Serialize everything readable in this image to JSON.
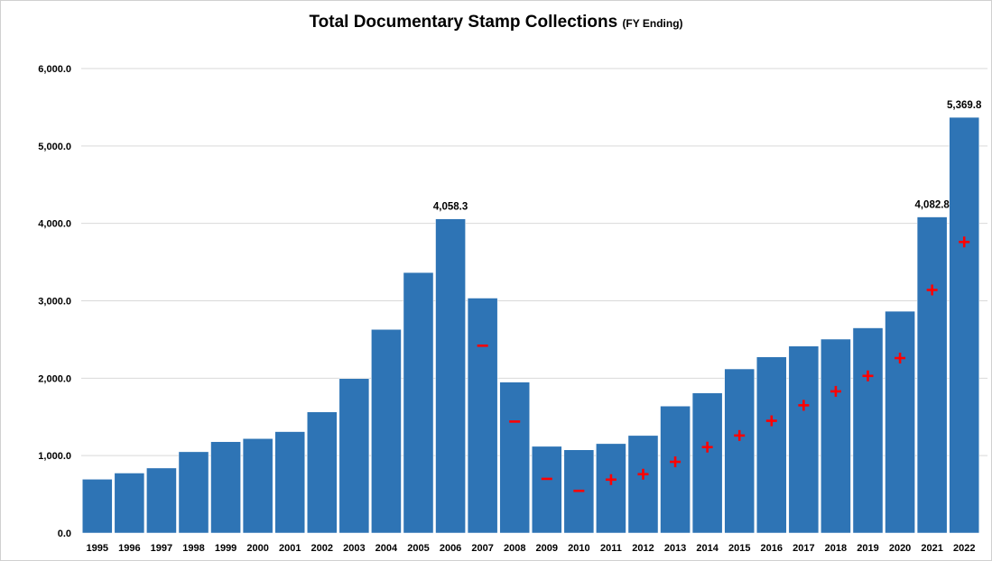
{
  "chart_data": {
    "type": "bar",
    "title": "Total Documentary Stamp Collections",
    "subtitle": "(FY Ending)",
    "xlabel": "",
    "ylabel": "",
    "ylim": [
      0,
      6000
    ],
    "yticks": [
      0,
      1000,
      2000,
      3000,
      4000,
      5000,
      6000
    ],
    "ytick_labels": [
      "0.0",
      "1,000.0",
      "2,000.0",
      "3,000.0",
      "4,000.0",
      "5,000.0",
      "6,000.0"
    ],
    "grid": true,
    "categories": [
      "1995",
      "1996",
      "1997",
      "1998",
      "1999",
      "2000",
      "2001",
      "2002",
      "2003",
      "2004",
      "2005",
      "2006",
      "2007",
      "2008",
      "2009",
      "2010",
      "2011",
      "2012",
      "2013",
      "2014",
      "2015",
      "2016",
      "2017",
      "2018",
      "2019",
      "2020",
      "2021",
      "2022"
    ],
    "values": [
      695,
      775,
      840,
      1050,
      1180,
      1220,
      1310,
      1565,
      1995,
      2630,
      3365,
      4058.3,
      3035,
      1950,
      1120,
      1075,
      1155,
      1260,
      1640,
      1810,
      2120,
      2275,
      2415,
      2505,
      2650,
      2865,
      4082.8,
      5369.8
    ],
    "data_labels": [
      {
        "category": "2006",
        "text": "4,058.3"
      },
      {
        "category": "2021",
        "text": "4,082.8"
      },
      {
        "category": "2022",
        "text": "5,369.8"
      }
    ],
    "change_markers": [
      {
        "category": "2007",
        "sign": "minus",
        "value": 2420
      },
      {
        "category": "2008",
        "sign": "minus",
        "value": 1440
      },
      {
        "category": "2009",
        "sign": "minus",
        "value": 700
      },
      {
        "category": "2010",
        "sign": "minus",
        "value": 545
      },
      {
        "category": "2011",
        "sign": "plus",
        "value": 690
      },
      {
        "category": "2012",
        "sign": "plus",
        "value": 760
      },
      {
        "category": "2013",
        "sign": "plus",
        "value": 920
      },
      {
        "category": "2014",
        "sign": "plus",
        "value": 1110
      },
      {
        "category": "2015",
        "sign": "plus",
        "value": 1260
      },
      {
        "category": "2016",
        "sign": "plus",
        "value": 1450
      },
      {
        "category": "2017",
        "sign": "plus",
        "value": 1650
      },
      {
        "category": "2018",
        "sign": "plus",
        "value": 1830
      },
      {
        "category": "2019",
        "sign": "plus",
        "value": 2030
      },
      {
        "category": "2020",
        "sign": "plus",
        "value": 2260
      },
      {
        "category": "2021",
        "sign": "plus",
        "value": 3140
      },
      {
        "category": "2022",
        "sign": "plus",
        "value": 3760
      }
    ],
    "colors": {
      "bar": "#2e74b5",
      "marker": "#ff0000",
      "grid": "#d9d9d9"
    }
  }
}
